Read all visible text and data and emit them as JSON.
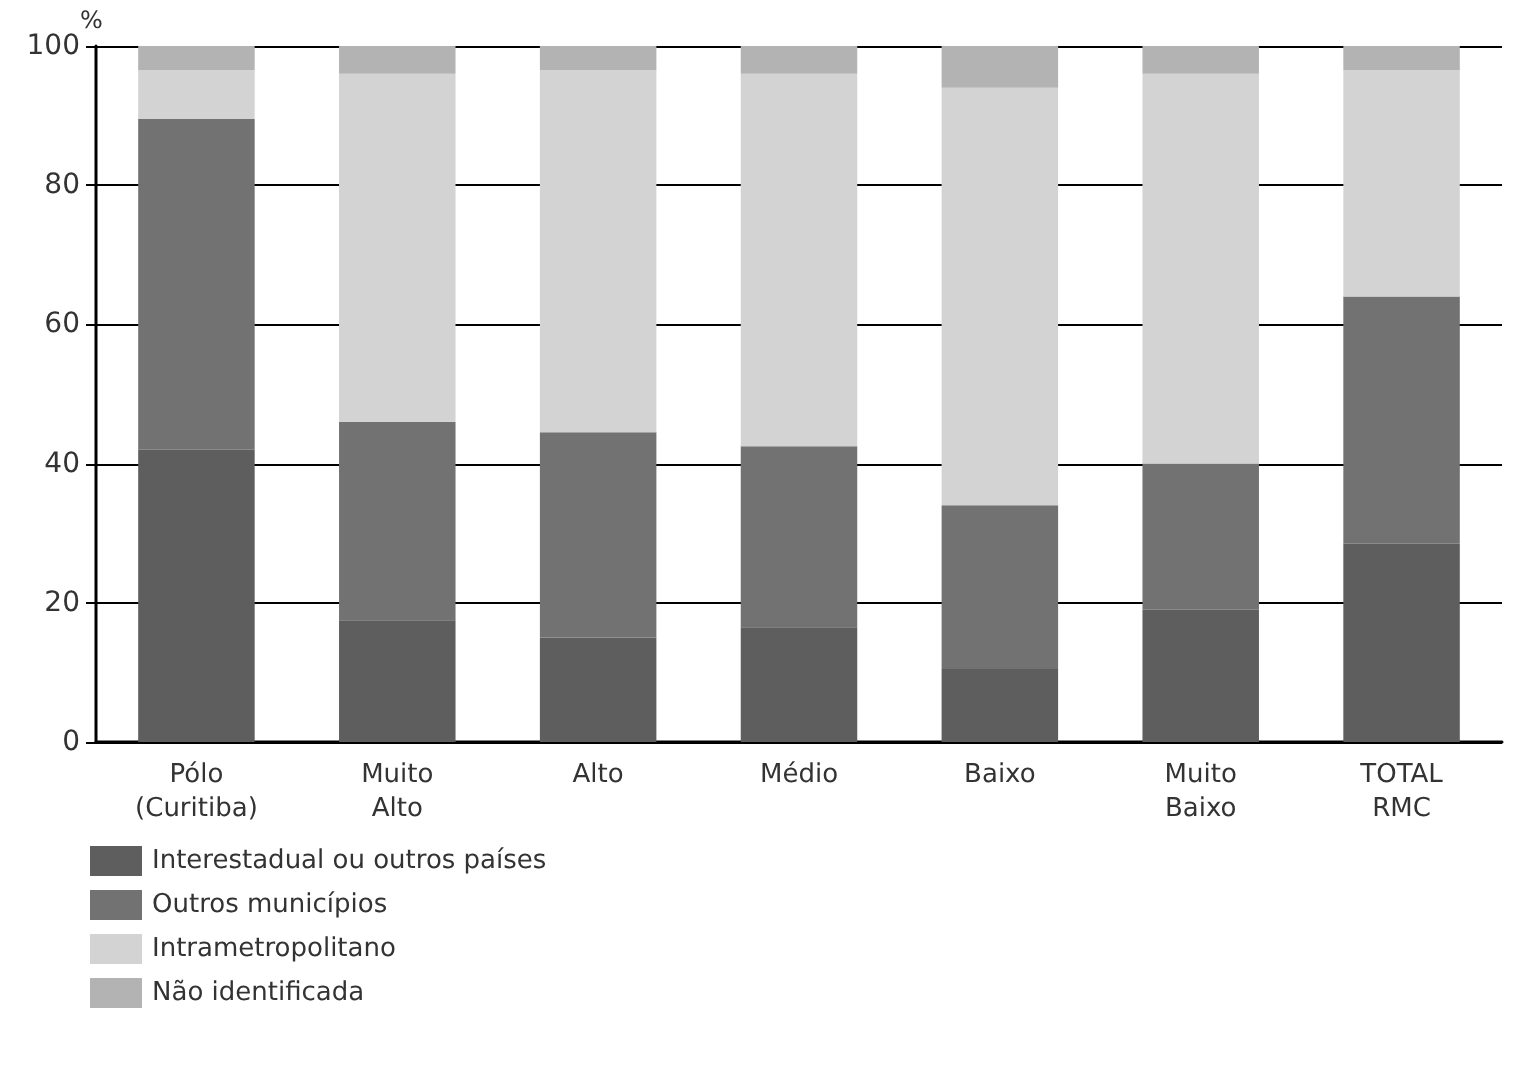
{
  "chart_data": {
    "type": "bar",
    "stacked": true,
    "ylabel": "%",
    "categories": [
      "Pólo\n(Curitiba)",
      "Muito\nAlto",
      "Alto",
      "Médio",
      "Baixo",
      "Muito\nBaixo",
      "TOTAL\nRMC"
    ],
    "series": [
      {
        "name": "Interestadual ou outros países",
        "color": "#5e5e5e",
        "values": [
          42,
          17.5,
          15,
          16.5,
          10.5,
          19,
          28.5
        ]
      },
      {
        "name": "Outros municípios",
        "color": "#727272",
        "values": [
          47.5,
          28.5,
          29.5,
          26,
          23.5,
          21,
          35.5
        ]
      },
      {
        "name": "Intrametropolitano",
        "color": "#d3d3d3",
        "values": [
          7,
          50,
          52,
          53.5,
          60,
          56,
          32.5
        ]
      },
      {
        "name": "Não identificada",
        "color": "#b3b3b3",
        "values": [
          3.5,
          4,
          3.5,
          4,
          6,
          4,
          3.5
        ]
      }
    ],
    "ylim": [
      0,
      100
    ],
    "yticks": [
      0,
      20,
      40,
      60,
      80,
      100
    ],
    "grid": "y",
    "legend": "bottom left"
  }
}
